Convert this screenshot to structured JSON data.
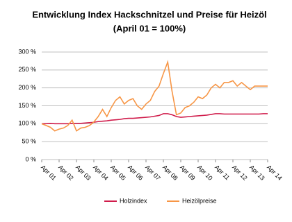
{
  "chart_data": {
    "type": "line",
    "title": "Entwicklung Index Hackschnitzel und Preise für Heizöl",
    "subtitle": "(April 01 = 100%)",
    "categories": [
      "Apr 01",
      null,
      null,
      null,
      "Apr 02",
      null,
      null,
      null,
      "Apr 03",
      null,
      null,
      null,
      "Apr 04",
      null,
      null,
      null,
      "Apr 05",
      null,
      null,
      null,
      "Apr 06",
      null,
      null,
      null,
      "Apr 07",
      null,
      null,
      null,
      "Apr 08",
      null,
      null,
      null,
      "Apr 09",
      null,
      null,
      null,
      "Apr 10",
      null,
      null,
      null,
      "Apr 11",
      null,
      null,
      null,
      "Apr 12",
      null,
      null,
      null,
      "Apr 13",
      null,
      null,
      null,
      "Apr 14"
    ],
    "series": [
      {
        "name": "Holzindex",
        "color": "#d01c4b",
        "values": [
          100,
          100,
          101,
          100,
          100,
          100,
          100,
          101,
          101,
          101,
          102,
          103,
          104,
          106,
          107,
          108,
          110,
          111,
          112,
          114,
          115,
          115,
          116,
          117,
          118,
          119,
          121,
          123,
          128,
          128,
          125,
          120,
          118,
          119,
          120,
          121,
          122,
          123,
          124,
          126,
          128,
          128,
          127,
          127,
          127,
          127,
          127,
          127,
          127,
          127,
          127,
          128,
          128
        ]
      },
      {
        "name": "Heizölpreise",
        "color": "#f79646",
        "values": [
          100,
          95,
          90,
          80,
          85,
          88,
          95,
          110,
          80,
          88,
          90,
          95,
          105,
          120,
          140,
          120,
          145,
          165,
          175,
          155,
          165,
          170,
          150,
          140,
          155,
          165,
          190,
          205,
          240,
          272,
          190,
          125,
          130,
          145,
          150,
          160,
          175,
          170,
          180,
          200,
          210,
          200,
          215,
          215,
          220,
          205,
          215,
          205,
          195,
          205,
          205,
          205,
          205
        ]
      }
    ],
    "ylim": [
      0,
      300
    ],
    "yticks": [
      {
        "value": 0,
        "label": "0 %"
      },
      {
        "value": 50,
        "label": "50 %"
      },
      {
        "value": 100,
        "label": "100 %"
      },
      {
        "value": 150,
        "label": "150 %"
      },
      {
        "value": 200,
        "label": "200 %"
      },
      {
        "value": 250,
        "label": "250 %"
      },
      {
        "value": 300,
        "label": "300 %"
      }
    ],
    "grid": true
  }
}
